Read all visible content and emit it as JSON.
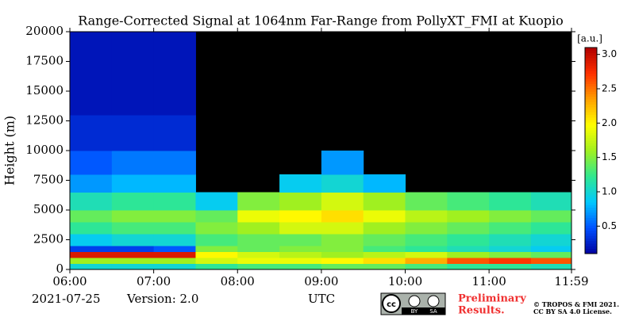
{
  "chart_data": {
    "type": "heatmap",
    "title": "Range-Corrected Signal at 1064nm Far-Range from PollyXT_FMI at Kuopio",
    "ylabel": "Height (m)",
    "xlabel": "UTC",
    "date": "2021-07-25",
    "version": "Version: 2.0",
    "notice": [
      "Preliminary",
      "Results."
    ],
    "copyright": [
      "© TROPOS & FMI 2021.",
      "CC BY SA 4.0 License."
    ],
    "license_logo": [
      "cc",
      "BY",
      "SA"
    ],
    "colorbar_label": "[a.u.]",
    "xlim": [
      6,
      11.9833
    ],
    "ylim": [
      0,
      20000
    ],
    "xticks": [
      {
        "value": 6,
        "label": "06:00"
      },
      {
        "value": 7,
        "label": "07:00"
      },
      {
        "value": 8,
        "label": "08:00"
      },
      {
        "value": 9,
        "label": "09:00"
      },
      {
        "value": 10,
        "label": "10:00"
      },
      {
        "value": 11,
        "label": "11:00"
      },
      {
        "value": 11.9833,
        "label": "11:59"
      }
    ],
    "yticks": [
      0,
      2500,
      5000,
      7500,
      10000,
      12500,
      15000,
      17500,
      20000
    ],
    "clim": [
      0.1,
      3.1
    ],
    "cticks": [
      0.5,
      {
        "value": 1,
        "label": "1.0"
      },
      1.5,
      {
        "value": 2,
        "label": "2.0"
      },
      2.5,
      {
        "value": 3,
        "label": "3.0"
      }
    ],
    "colormap": [
      "#0000a0",
      "#0050ff",
      "#00c8ff",
      "#30e890",
      "#a0f020",
      "#ffff00",
      "#ffa000",
      "#ff3000",
      "#b00000"
    ],
    "background": "#000000",
    "x_edges": [
      6,
      6.5,
      7,
      7.5,
      8,
      8.5,
      9,
      9.5,
      10,
      10.5,
      11,
      11.5,
      11.9833
    ],
    "y_edges": [
      0,
      500,
      1000,
      1500,
      2000,
      3000,
      4000,
      5000,
      6500,
      8000,
      10000,
      13000,
      16500,
      20000
    ],
    "z": [
      [
        1.0,
        1.0,
        1.0,
        1.2,
        1.3,
        1.3,
        1.4,
        1.4,
        1.3,
        1.2,
        1.2,
        1.1
      ],
      [
        1.6,
        1.6,
        1.6,
        1.8,
        1.9,
        1.9,
        2.0,
        2.1,
        2.3,
        2.6,
        2.7,
        2.6
      ],
      [
        2.9,
        2.9,
        2.9,
        2.0,
        1.8,
        1.7,
        1.6,
        1.7,
        1.8,
        1.6,
        1.5,
        1.4
      ],
      [
        0.4,
        0.4,
        0.5,
        1.5,
        1.4,
        1.5,
        1.5,
        1.3,
        1.2,
        1.1,
        1.0,
        0.9
      ],
      [
        0.9,
        1.0,
        1.0,
        1.3,
        1.4,
        1.4,
        1.5,
        1.4,
        1.3,
        1.2,
        1.1,
        1.0
      ],
      [
        1.2,
        1.3,
        1.3,
        1.5,
        1.6,
        1.8,
        1.8,
        1.6,
        1.5,
        1.4,
        1.3,
        1.2
      ],
      [
        1.4,
        1.5,
        1.5,
        1.4,
        1.9,
        2.0,
        2.1,
        1.9,
        1.7,
        1.6,
        1.5,
        1.4
      ],
      [
        1.1,
        1.2,
        1.2,
        0.9,
        1.5,
        1.6,
        1.8,
        1.6,
        1.4,
        1.3,
        1.2,
        1.1
      ],
      [
        0.7,
        0.8,
        0.8,
        null,
        null,
        0.9,
        1.0,
        0.8,
        null,
        null,
        null,
        null
      ],
      [
        0.5,
        0.6,
        0.6,
        null,
        null,
        null,
        0.7,
        null,
        null,
        null,
        null,
        null
      ],
      [
        0.3,
        0.3,
        0.3,
        null,
        null,
        null,
        null,
        null,
        null,
        null,
        null,
        null
      ],
      [
        0.2,
        0.2,
        0.2,
        null,
        null,
        null,
        null,
        null,
        null,
        null,
        null,
        null
      ],
      [
        0.2,
        0.2,
        0.2,
        null,
        null,
        null,
        null,
        null,
        null,
        null,
        null,
        null
      ]
    ]
  }
}
